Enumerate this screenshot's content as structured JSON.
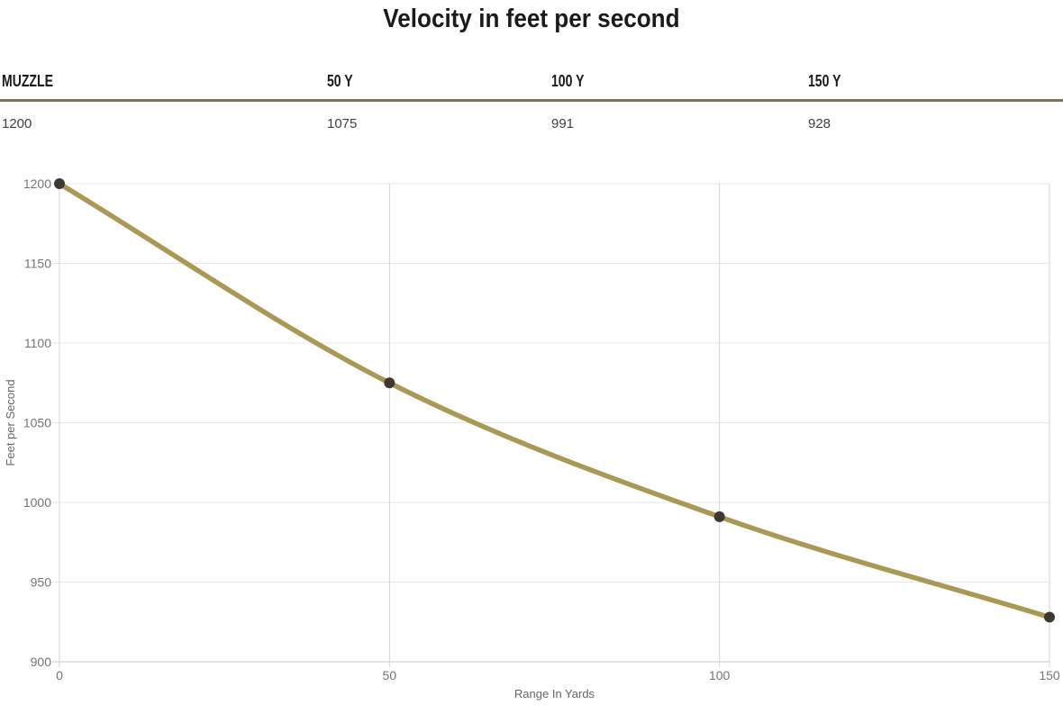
{
  "page": {
    "title": "Velocity in feet per second"
  },
  "table": {
    "columns": [
      {
        "label": "MUZZLE",
        "value": "1200"
      },
      {
        "label": "50 Y",
        "value": "1075"
      },
      {
        "label": "100 Y",
        "value": "991"
      },
      {
        "label": "150 Y",
        "value": "928"
      }
    ]
  },
  "chart_data": {
    "type": "line",
    "title": "Velocity in feet per second",
    "x": [
      0,
      50,
      100,
      150
    ],
    "series": [
      {
        "name": "Velocity",
        "values": [
          1200,
          1075,
          991,
          928
        ]
      }
    ],
    "xlabel": "Range In Yards",
    "ylabel": "Feet per Second",
    "xlim": [
      0,
      150
    ],
    "ylim": [
      900,
      1200
    ],
    "x_ticks": [
      0,
      50,
      100,
      150
    ],
    "y_ticks": [
      900,
      950,
      1000,
      1050,
      1100,
      1150,
      1200
    ],
    "grid": true,
    "legend": "none",
    "line_color": "#aa9955",
    "marker_color": "#3e392f",
    "grid_color": "#e8e8e8",
    "vgrid_color": "#d4d4d4",
    "axis_line_color": "#c9c9c9",
    "tick_label_color": "#757575",
    "axis_title_color": "#666666"
  },
  "colors": {
    "separator": "#7a7160",
    "heading_text": "#1b1b1b",
    "value_text": "#3f3f3f",
    "background": "#ffffff"
  }
}
